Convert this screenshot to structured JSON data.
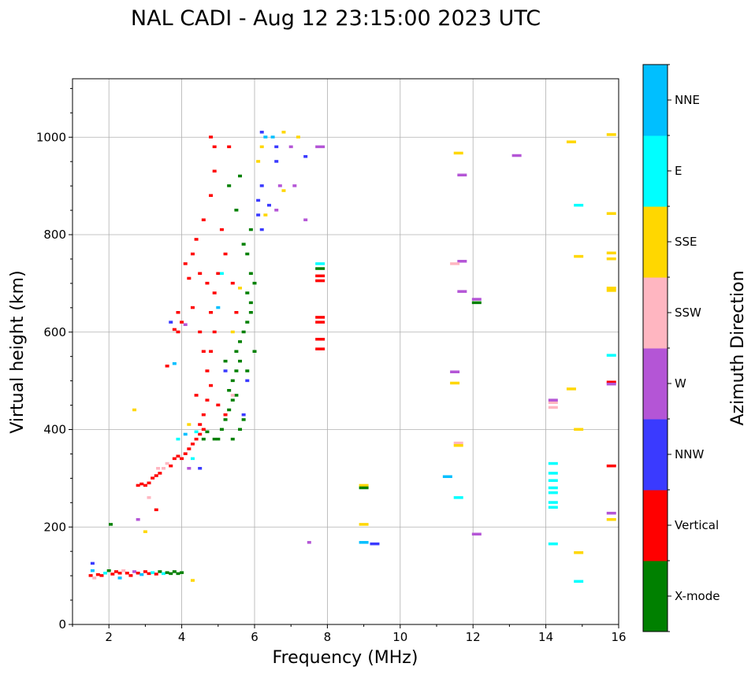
{
  "chart_data": {
    "type": "scatter",
    "title": "NAL CADI - Aug 12 23:15:00 2023 UTC",
    "xlabel": "Frequency (MHz)",
    "ylabel": "Virtual height (km)",
    "xlim": [
      1,
      16
    ],
    "ylim": [
      0,
      1120
    ],
    "xticks": [
      2,
      4,
      6,
      8,
      10,
      12,
      14,
      16
    ],
    "yticks": [
      0,
      200,
      400,
      600,
      800,
      1000
    ],
    "grid": true,
    "colorbar": {
      "label": "Azimuth Direction",
      "categories": [
        "X-mode",
        "Vertical",
        "NNW",
        "W",
        "SSW",
        "SSE",
        "E",
        "NNE"
      ],
      "colors": [
        "#008000",
        "#ff0000",
        "#3a3aff",
        "#b455d6",
        "#ffb6c1",
        "#ffd700",
        "#00ffff",
        "#00bfff"
      ]
    },
    "point_format": [
      "frequency_mhz",
      "virtual_height_km",
      "direction_index"
    ],
    "points": [
      [
        1.5,
        100,
        1
      ],
      [
        1.55,
        110,
        7
      ],
      [
        1.55,
        125,
        2
      ],
      [
        1.6,
        95,
        4
      ],
      [
        1.7,
        102,
        1
      ],
      [
        1.8,
        100,
        1
      ],
      [
        1.9,
        105,
        6
      ],
      [
        2.0,
        110,
        0
      ],
      [
        2.1,
        103,
        1
      ],
      [
        2.2,
        108,
        1
      ],
      [
        2.3,
        95,
        7
      ],
      [
        2.3,
        105,
        1
      ],
      [
        2.4,
        110,
        4
      ],
      [
        2.5,
        105,
        1
      ],
      [
        2.6,
        100,
        1
      ],
      [
        2.7,
        108,
        3
      ],
      [
        2.8,
        105,
        1
      ],
      [
        2.9,
        102,
        7
      ],
      [
        3.0,
        108,
        1
      ],
      [
        3.1,
        104,
        1
      ],
      [
        3.2,
        106,
        6
      ],
      [
        3.3,
        103,
        1
      ],
      [
        3.4,
        108,
        0
      ],
      [
        3.5,
        104,
        6
      ],
      [
        3.6,
        106,
        0
      ],
      [
        3.7,
        104,
        0
      ],
      [
        3.8,
        108,
        0
      ],
      [
        3.9,
        104,
        0
      ],
      [
        4.0,
        106,
        0
      ],
      [
        4.3,
        90,
        5
      ],
      [
        2.05,
        205,
        0
      ],
      [
        2.8,
        285,
        1
      ],
      [
        2.9,
        288,
        1
      ],
      [
        3.0,
        285,
        1
      ],
      [
        3.1,
        290,
        1
      ],
      [
        3.2,
        300,
        1
      ],
      [
        3.3,
        305,
        1
      ],
      [
        3.35,
        320,
        4
      ],
      [
        3.4,
        310,
        1
      ],
      [
        3.5,
        320,
        4
      ],
      [
        3.6,
        330,
        4
      ],
      [
        3.7,
        325,
        1
      ],
      [
        3.8,
        340,
        1
      ],
      [
        3.9,
        345,
        1
      ],
      [
        4.0,
        340,
        1
      ],
      [
        4.1,
        350,
        1
      ],
      [
        4.2,
        360,
        1
      ],
      [
        4.3,
        370,
        1
      ],
      [
        4.4,
        380,
        1
      ],
      [
        4.5,
        390,
        1
      ],
      [
        4.6,
        400,
        1
      ],
      [
        4.3,
        340,
        6
      ],
      [
        4.1,
        390,
        7
      ],
      [
        3.9,
        380,
        6
      ],
      [
        4.4,
        395,
        6
      ],
      [
        4.5,
        410,
        1
      ],
      [
        4.6,
        380,
        0
      ],
      [
        4.7,
        395,
        0
      ],
      [
        4.2,
        410,
        5
      ],
      [
        4.6,
        430,
        1
      ],
      [
        4.7,
        460,
        1
      ],
      [
        4.8,
        490,
        1
      ],
      [
        4.7,
        520,
        1
      ],
      [
        4.8,
        560,
        1
      ],
      [
        4.9,
        600,
        1
      ],
      [
        4.8,
        640,
        1
      ],
      [
        4.9,
        680,
        1
      ],
      [
        4.7,
        700,
        1
      ],
      [
        4.5,
        720,
        1
      ],
      [
        4.3,
        760,
        1
      ],
      [
        4.2,
        710,
        1
      ],
      [
        4.4,
        790,
        1
      ],
      [
        4.6,
        830,
        1
      ],
      [
        4.8,
        880,
        1
      ],
      [
        4.9,
        930,
        1
      ],
      [
        4.8,
        1000,
        1
      ],
      [
        4.9,
        980,
        1
      ],
      [
        5.1,
        810,
        1
      ],
      [
        5.2,
        760,
        1
      ],
      [
        5.0,
        720,
        1
      ],
      [
        4.0,
        620,
        1
      ],
      [
        3.9,
        640,
        1
      ],
      [
        3.8,
        605,
        1
      ],
      [
        3.6,
        530,
        1
      ],
      [
        4.3,
        650,
        1
      ],
      [
        4.5,
        600,
        1
      ],
      [
        4.6,
        560,
        1
      ],
      [
        4.4,
        470,
        1
      ],
      [
        5.0,
        450,
        1
      ],
      [
        5.2,
        430,
        1
      ],
      [
        5.5,
        640,
        1
      ],
      [
        5.4,
        700,
        1
      ],
      [
        5.3,
        980,
        1
      ],
      [
        4.1,
        740,
        1
      ],
      [
        3.3,
        235,
        1
      ],
      [
        5.0,
        380,
        0
      ],
      [
        5.1,
        400,
        0
      ],
      [
        5.2,
        420,
        0
      ],
      [
        5.3,
        440,
        0
      ],
      [
        5.4,
        460,
        0
      ],
      [
        5.3,
        480,
        0
      ],
      [
        5.4,
        500,
        0
      ],
      [
        5.5,
        520,
        0
      ],
      [
        5.6,
        540,
        0
      ],
      [
        5.5,
        560,
        0
      ],
      [
        5.6,
        580,
        0
      ],
      [
        5.7,
        600,
        0
      ],
      [
        5.8,
        620,
        0
      ],
      [
        5.9,
        640,
        0
      ],
      [
        5.9,
        660,
        0
      ],
      [
        5.8,
        680,
        0
      ],
      [
        6.0,
        700,
        0
      ],
      [
        5.9,
        720,
        0
      ],
      [
        5.8,
        760,
        0
      ],
      [
        5.7,
        780,
        0
      ],
      [
        5.9,
        810,
        0
      ],
      [
        5.5,
        850,
        0
      ],
      [
        5.6,
        920,
        0
      ],
      [
        5.3,
        900,
        0
      ],
      [
        5.4,
        380,
        0
      ],
      [
        5.6,
        400,
        0
      ],
      [
        5.7,
        420,
        0
      ],
      [
        5.8,
        520,
        0
      ],
      [
        6.0,
        560,
        0
      ],
      [
        5.2,
        540,
        0
      ],
      [
        4.9,
        380,
        0
      ],
      [
        5.5,
        470,
        0
      ],
      [
        5.2,
        520,
        2
      ],
      [
        5.8,
        500,
        2
      ],
      [
        5.7,
        430,
        2
      ],
      [
        5.1,
        720,
        6
      ],
      [
        5.0,
        650,
        7
      ],
      [
        5.4,
        600,
        5
      ],
      [
        5.6,
        690,
        5
      ],
      [
        5.4,
        470,
        4
      ],
      [
        3.7,
        620,
        2
      ],
      [
        4.1,
        615,
        3
      ],
      [
        3.9,
        600,
        1
      ],
      [
        3.8,
        535,
        7
      ],
      [
        4.2,
        320,
        3
      ],
      [
        4.5,
        320,
        2
      ],
      [
        2.8,
        215,
        3
      ],
      [
        3.0,
        190,
        5
      ],
      [
        2.7,
        440,
        5
      ],
      [
        3.1,
        260,
        4
      ],
      [
        6.1,
        840,
        2
      ],
      [
        6.1,
        870,
        2
      ],
      [
        6.2,
        900,
        2
      ],
      [
        6.1,
        950,
        5
      ],
      [
        6.2,
        980,
        5
      ],
      [
        6.3,
        1000,
        7
      ],
      [
        6.2,
        1010,
        2
      ],
      [
        6.4,
        860,
        2
      ],
      [
        6.6,
        980,
        2
      ],
      [
        6.6,
        950,
        2
      ],
      [
        6.7,
        900,
        3
      ],
      [
        6.6,
        850,
        3
      ],
      [
        6.8,
        890,
        5
      ],
      [
        6.8,
        1010,
        5
      ],
      [
        7.0,
        980,
        3
      ],
      [
        7.2,
        1000,
        5
      ],
      [
        7.1,
        900,
        3
      ],
      [
        7.4,
        960,
        2
      ],
      [
        6.2,
        810,
        2
      ],
      [
        6.3,
        840,
        5
      ],
      [
        7.4,
        830,
        3
      ],
      [
        7.8,
        980,
        3
      ],
      [
        6.5,
        1000,
        7
      ],
      [
        7.8,
        740,
        6
      ],
      [
        7.8,
        730,
        0
      ],
      [
        7.8,
        715,
        1
      ],
      [
        7.8,
        705,
        1
      ],
      [
        7.8,
        630,
        1
      ],
      [
        7.8,
        620,
        1
      ],
      [
        7.8,
        585,
        1
      ],
      [
        7.8,
        565,
        1
      ],
      [
        7.5,
        168,
        3
      ],
      [
        9.0,
        285,
        5
      ],
      [
        9.0,
        280,
        0
      ],
      [
        9.0,
        205,
        5
      ],
      [
        9.0,
        168,
        7
      ],
      [
        9.3,
        165,
        2
      ],
      [
        11.3,
        303,
        7
      ],
      [
        11.5,
        518,
        3
      ],
      [
        11.5,
        495,
        5
      ],
      [
        11.6,
        372,
        4
      ],
      [
        11.6,
        367,
        5
      ],
      [
        11.6,
        260,
        6
      ],
      [
        11.6,
        967,
        5
      ],
      [
        11.7,
        922,
        3
      ],
      [
        11.7,
        745,
        3
      ],
      [
        11.5,
        740,
        4
      ],
      [
        11.7,
        683,
        3
      ],
      [
        12.1,
        667,
        3
      ],
      [
        12.1,
        660,
        0
      ],
      [
        12.1,
        185,
        3
      ],
      [
        13.2,
        962,
        3
      ],
      [
        14.2,
        455,
        4
      ],
      [
        14.2,
        445,
        4
      ],
      [
        14.2,
        460,
        3
      ],
      [
        14.2,
        330,
        6
      ],
      [
        14.2,
        310,
        6
      ],
      [
        14.2,
        295,
        6
      ],
      [
        14.2,
        280,
        6
      ],
      [
        14.2,
        270,
        6
      ],
      [
        14.2,
        250,
        6
      ],
      [
        14.2,
        240,
        6
      ],
      [
        14.2,
        165,
        6
      ],
      [
        14.7,
        990,
        5
      ],
      [
        14.7,
        483,
        5
      ],
      [
        14.9,
        755,
        5
      ],
      [
        14.9,
        400,
        5
      ],
      [
        14.9,
        147,
        5
      ],
      [
        14.9,
        88,
        6
      ],
      [
        14.9,
        860,
        6
      ],
      [
        15.8,
        1005,
        5
      ],
      [
        15.8,
        843,
        5
      ],
      [
        15.8,
        762,
        5
      ],
      [
        15.8,
        750,
        5
      ],
      [
        15.8,
        690,
        5
      ],
      [
        15.8,
        685,
        5
      ],
      [
        15.8,
        552,
        6
      ],
      [
        15.8,
        497,
        1
      ],
      [
        15.8,
        493,
        3
      ],
      [
        15.8,
        325,
        1
      ],
      [
        15.8,
        228,
        3
      ],
      [
        15.8,
        215,
        5
      ]
    ]
  }
}
